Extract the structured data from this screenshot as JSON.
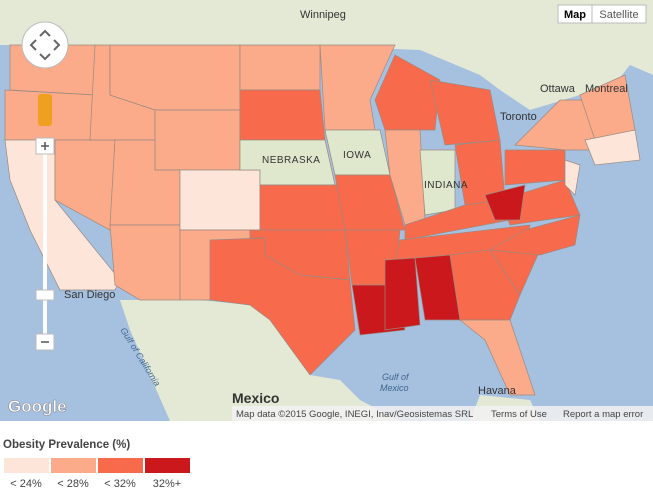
{
  "map": {
    "places": {
      "winnipeg": "Winnipeg",
      "ottawa": "Ottawa",
      "montreal": "Montreal",
      "toronto": "Toronto",
      "nebraska": "NEBRASKA",
      "iowa": "IOWA",
      "indiana": "INDIANA",
      "san_diego": "San Diego",
      "mexico": "Mexico",
      "gulf_of_california": "Gulf of California",
      "gulf_of_mexico": [
        "Gulf of",
        "Mexico"
      ],
      "havana": "Havana"
    },
    "controls": {
      "map": "Map",
      "satellite": "Satellite"
    },
    "logo": "Google",
    "attribution": {
      "data": "Map data ©2015 Google, INEGI, Inav/Geosistemas SRL",
      "terms": "Terms of Use",
      "report": "Report a map error"
    }
  },
  "legend": {
    "title": "Obesity Prevalence (%)",
    "items": [
      {
        "label": "< 24%",
        "color": "#fde5da"
      },
      {
        "label": "< 28%",
        "color": "#fbaa8a"
      },
      {
        "label": "< 32%",
        "color": "#f86a4c"
      },
      {
        "label": "32%+",
        "color": "#cb181d"
      }
    ]
  }
}
